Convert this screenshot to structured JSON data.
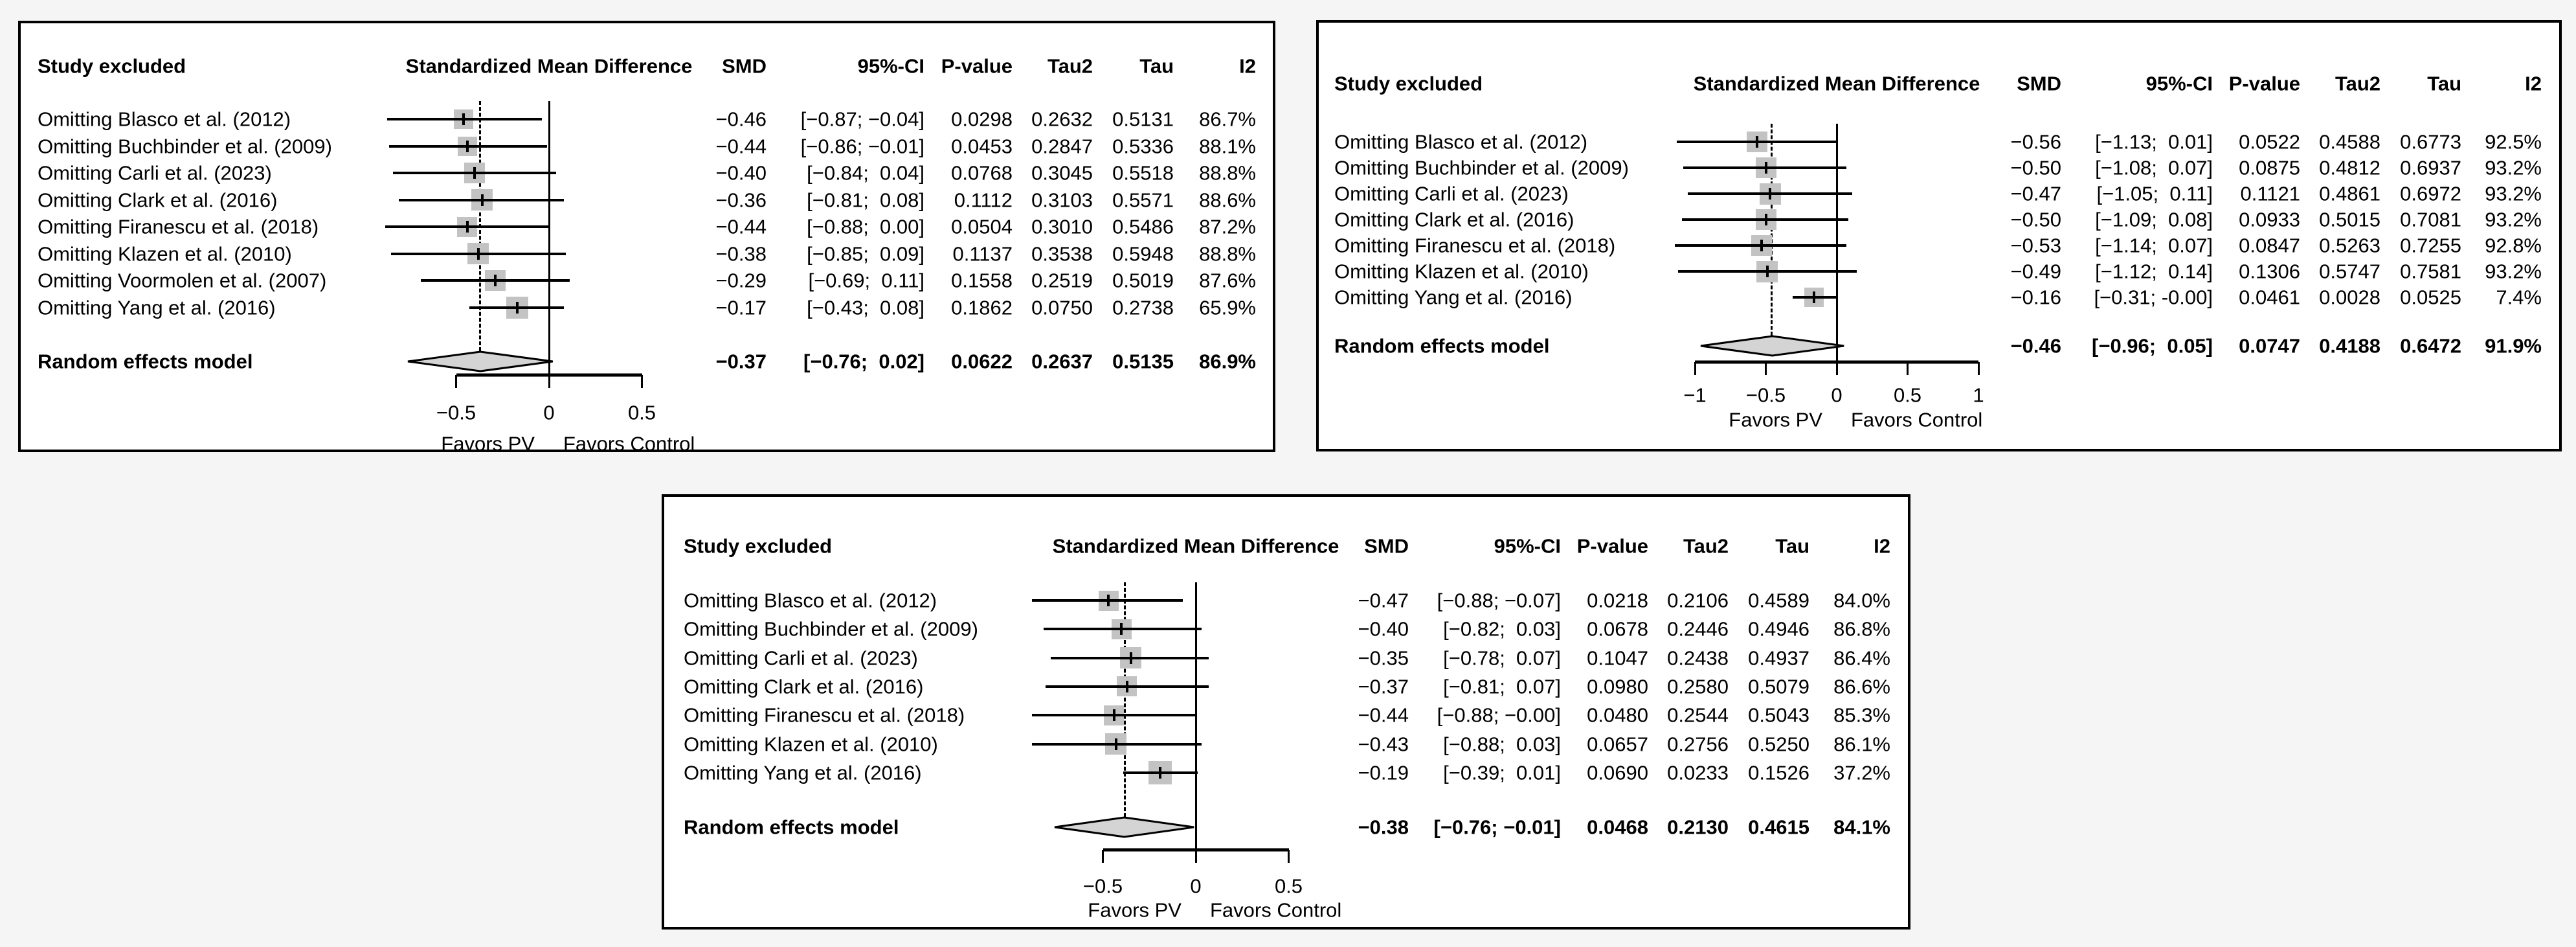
{
  "figure_title": "",
  "chart_data": [
    {
      "type": "forest",
      "id": "top-left",
      "column_headers": {
        "study": "Study excluded",
        "plot": "Standardized Mean Difference",
        "smd": "SMD",
        "ci": "95%-CI",
        "p": "P-value",
        "tau2": "Tau2",
        "tau": "Tau",
        "i2": "I2"
      },
      "rows": [
        {
          "label": "Omitting Blasco et al. (2012)",
          "smd": -0.46,
          "lo": -0.87,
          "hi": -0.04,
          "size": 30,
          "smd_text": "−0.46",
          "ci_text": "[−0.87; −0.04]",
          "p": "0.0298",
          "tau2": "0.2632",
          "tau": "0.5131",
          "i2": "86.7%"
        },
        {
          "label": "Omitting Buchbinder et al. (2009)",
          "smd": -0.44,
          "lo": -0.86,
          "hi": -0.01,
          "size": 30,
          "smd_text": "−0.44",
          "ci_text": "[−0.86; −0.01]",
          "p": "0.0453",
          "tau2": "0.2847",
          "tau": "0.5336",
          "i2": "88.1%"
        },
        {
          "label": "Omitting Carli et al. (2023)",
          "smd": -0.4,
          "lo": -0.84,
          "hi": 0.04,
          "size": 32,
          "smd_text": "−0.40",
          "ci_text": "[−0.84;  0.04]",
          "p": "0.0768",
          "tau2": "0.3045",
          "tau": "0.5518",
          "i2": "88.8%"
        },
        {
          "label": "Omitting Clark et al. (2016)",
          "smd": -0.36,
          "lo": -0.81,
          "hi": 0.08,
          "size": 33,
          "smd_text": "−0.36",
          "ci_text": "[−0.81;  0.08]",
          "p": "0.1112",
          "tau2": "0.3103",
          "tau": "0.5571",
          "i2": "88.6%"
        },
        {
          "label": "Omitting Firanescu et al. (2018)",
          "smd": -0.44,
          "lo": -0.88,
          "hi": 0.0,
          "size": 31,
          "smd_text": "−0.44",
          "ci_text": "[−0.88;  0.00]",
          "p": "0.0504",
          "tau2": "0.3010",
          "tau": "0.5486",
          "i2": "87.2%"
        },
        {
          "label": "Omitting Klazen et al. (2010)",
          "smd": -0.38,
          "lo": -0.85,
          "hi": 0.09,
          "size": 33,
          "smd_text": "−0.38",
          "ci_text": "[−0.85;  0.09]",
          "p": "0.1137",
          "tau2": "0.3538",
          "tau": "0.5948",
          "i2": "88.8%"
        },
        {
          "label": "Omitting Voormolen et al. (2007)",
          "smd": -0.29,
          "lo": -0.69,
          "hi": 0.11,
          "size": 32,
          "smd_text": "−0.29",
          "ci_text": "[−0.69;  0.11]",
          "p": "0.1558",
          "tau2": "0.2519",
          "tau": "0.5019",
          "i2": "87.6%"
        },
        {
          "label": "Omitting Yang et al. (2016)",
          "smd": -0.17,
          "lo": -0.43,
          "hi": 0.08,
          "size": 34,
          "smd_text": "−0.17",
          "ci_text": "[−0.43;  0.08]",
          "p": "0.1862",
          "tau2": "0.0750",
          "tau": "0.2738",
          "i2": "65.9%"
        }
      ],
      "summary": {
        "label": "Random effects model",
        "smd": -0.37,
        "lo": -0.76,
        "hi": 0.02,
        "smd_text": "−0.37",
        "ci_text": "[−0.76;  0.02]",
        "p": "0.0622",
        "tau2": "0.2637",
        "tau": "0.5135",
        "i2": "86.9%"
      },
      "axis": {
        "ticks": [
          -0.5,
          0,
          0.5
        ],
        "tick_labels": [
          "−0.5",
          "0",
          "0.5"
        ],
        "xlim": [
          -0.5,
          0.5
        ],
        "zero_line": 0
      },
      "favors_left": "Favors PV",
      "favors_right": "Favors Control"
    },
    {
      "type": "forest",
      "id": "top-right",
      "column_headers": {
        "study": "Study excluded",
        "plot": "Standardized Mean Difference",
        "smd": "SMD",
        "ci": "95%-CI",
        "p": "P-value",
        "tau2": "Tau2",
        "tau": "Tau",
        "i2": "I2"
      },
      "rows": [
        {
          "label": "Omitting Blasco et al. (2012)",
          "smd": -0.56,
          "lo": -1.13,
          "hi": 0.01,
          "size": 32,
          "smd_text": "−0.56",
          "ci_text": "[−1.13;  0.01]",
          "p": "0.0522",
          "tau2": "0.4588",
          "tau": "0.6773",
          "i2": "92.5%"
        },
        {
          "label": "Omitting Buchbinder et al. (2009)",
          "smd": -0.5,
          "lo": -1.08,
          "hi": 0.07,
          "size": 32,
          "smd_text": "−0.50",
          "ci_text": "[−1.08;  0.07]",
          "p": "0.0875",
          "tau2": "0.4812",
          "tau": "0.6937",
          "i2": "93.2%"
        },
        {
          "label": "Omitting Carli et al. (2023)",
          "smd": -0.47,
          "lo": -1.05,
          "hi": 0.11,
          "size": 33,
          "smd_text": "−0.47",
          "ci_text": "[−1.05;  0.11]",
          "p": "0.1121",
          "tau2": "0.4861",
          "tau": "0.6972",
          "i2": "93.2%"
        },
        {
          "label": "Omitting Clark et al. (2016)",
          "smd": -0.5,
          "lo": -1.09,
          "hi": 0.08,
          "size": 32,
          "smd_text": "−0.50",
          "ci_text": "[−1.09;  0.08]",
          "p": "0.0933",
          "tau2": "0.5015",
          "tau": "0.7081",
          "i2": "93.2%"
        },
        {
          "label": "Omitting Firanescu et al. (2018)",
          "smd": -0.53,
          "lo": -1.14,
          "hi": 0.07,
          "size": 32,
          "smd_text": "−0.53",
          "ci_text": "[−1.14;  0.07]",
          "p": "0.0847",
          "tau2": "0.5263",
          "tau": "0.7255",
          "i2": "92.8%"
        },
        {
          "label": "Omitting Klazen et al. (2010)",
          "smd": -0.49,
          "lo": -1.12,
          "hi": 0.14,
          "size": 33,
          "smd_text": "−0.49",
          "ci_text": "[−1.12;  0.14]",
          "p": "0.1306",
          "tau2": "0.5747",
          "tau": "0.7581",
          "i2": "93.2%"
        },
        {
          "label": "Omitting Yang et al. (2016)",
          "smd": -0.16,
          "lo": -0.31,
          "hi": -0.001,
          "size": 30,
          "smd_text": "−0.16",
          "ci_text": "[−0.31; -0.00]",
          "p": "0.0461",
          "tau2": "0.0028",
          "tau": "0.0525",
          "i2": "7.4%"
        }
      ],
      "summary": {
        "label": "Random effects model",
        "smd": -0.46,
        "lo": -0.96,
        "hi": 0.05,
        "smd_text": "−0.46",
        "ci_text": "[−0.96;  0.05]",
        "p": "0.0747",
        "tau2": "0.4188",
        "tau": "0.6472",
        "i2": "91.9%"
      },
      "axis": {
        "ticks": [
          -1,
          -0.5,
          0,
          0.5,
          1
        ],
        "tick_labels": [
          "−1",
          "−0.5",
          "0",
          "0.5",
          "1"
        ],
        "xlim": [
          -1,
          1
        ],
        "zero_line": 0
      },
      "favors_left": "Favors PV",
      "favors_right": "Favors Control"
    },
    {
      "type": "forest",
      "id": "bottom-center",
      "column_headers": {
        "study": "Study excluded",
        "plot": "Standardized Mean Difference",
        "smd": "SMD",
        "ci": "95%-CI",
        "p": "P-value",
        "tau2": "Tau2",
        "tau": "Tau",
        "i2": "I2"
      },
      "rows": [
        {
          "label": "Omitting Blasco et al. (2012)",
          "smd": -0.47,
          "lo": -0.88,
          "hi": -0.07,
          "size": 31,
          "smd_text": "−0.47",
          "ci_text": "[−0.88; −0.07]",
          "p": "0.0218",
          "tau2": "0.2106",
          "tau": "0.4589",
          "i2": "84.0%"
        },
        {
          "label": "Omitting Buchbinder et al. (2009)",
          "smd": -0.4,
          "lo": -0.82,
          "hi": 0.03,
          "size": 31,
          "smd_text": "−0.40",
          "ci_text": "[−0.82;  0.03]",
          "p": "0.0678",
          "tau2": "0.2446",
          "tau": "0.4946",
          "i2": "86.8%"
        },
        {
          "label": "Omitting Carli et al. (2023)",
          "smd": -0.35,
          "lo": -0.78,
          "hi": 0.07,
          "size": 33,
          "smd_text": "−0.35",
          "ci_text": "[−0.78;  0.07]",
          "p": "0.1047",
          "tau2": "0.2438",
          "tau": "0.4937",
          "i2": "86.4%"
        },
        {
          "label": "Omitting Clark et al. (2016)",
          "smd": -0.37,
          "lo": -0.81,
          "hi": 0.07,
          "size": 31,
          "smd_text": "−0.37",
          "ci_text": "[−0.81;  0.07]",
          "p": "0.0980",
          "tau2": "0.2580",
          "tau": "0.5079",
          "i2": "86.6%"
        },
        {
          "label": "Omitting Firanescu et al. (2018)",
          "smd": -0.44,
          "lo": -0.88,
          "hi": -0.001,
          "size": 31,
          "smd_text": "−0.44",
          "ci_text": "[−0.88; −0.00]",
          "p": "0.0480",
          "tau2": "0.2544",
          "tau": "0.5043",
          "i2": "85.3%"
        },
        {
          "label": "Omitting Klazen et al. (2010)",
          "smd": -0.43,
          "lo": -0.88,
          "hi": 0.03,
          "size": 33,
          "smd_text": "−0.43",
          "ci_text": "[−0.88;  0.03]",
          "p": "0.0657",
          "tau2": "0.2756",
          "tau": "0.5250",
          "i2": "86.1%"
        },
        {
          "label": "Omitting Yang et al. (2016)",
          "smd": -0.19,
          "lo": -0.39,
          "hi": 0.01,
          "size": 36,
          "smd_text": "−0.19",
          "ci_text": "[−0.39;  0.01]",
          "p": "0.0690",
          "tau2": "0.0233",
          "tau": "0.1526",
          "i2": "37.2%"
        }
      ],
      "summary": {
        "label": "Random effects model",
        "smd": -0.38,
        "lo": -0.76,
        "hi": -0.01,
        "smd_text": "−0.38",
        "ci_text": "[−0.76; −0.01]",
        "p": "0.0468",
        "tau2": "0.2130",
        "tau": "0.4615",
        "i2": "84.1%"
      },
      "axis": {
        "ticks": [
          -0.5,
          0,
          0.5
        ],
        "tick_labels": [
          "−0.5",
          "0",
          "0.5"
        ],
        "xlim": [
          -0.5,
          0.5
        ],
        "zero_line": 0
      },
      "favors_left": "Favors PV",
      "favors_right": "Favors Control"
    }
  ],
  "colors": {
    "square_fill": "#c3c3c3",
    "diamond_fill": "#d4d4d4",
    "line": "#000000",
    "panel_background": "#ffffff",
    "page_background": "#f5f5f5"
  }
}
